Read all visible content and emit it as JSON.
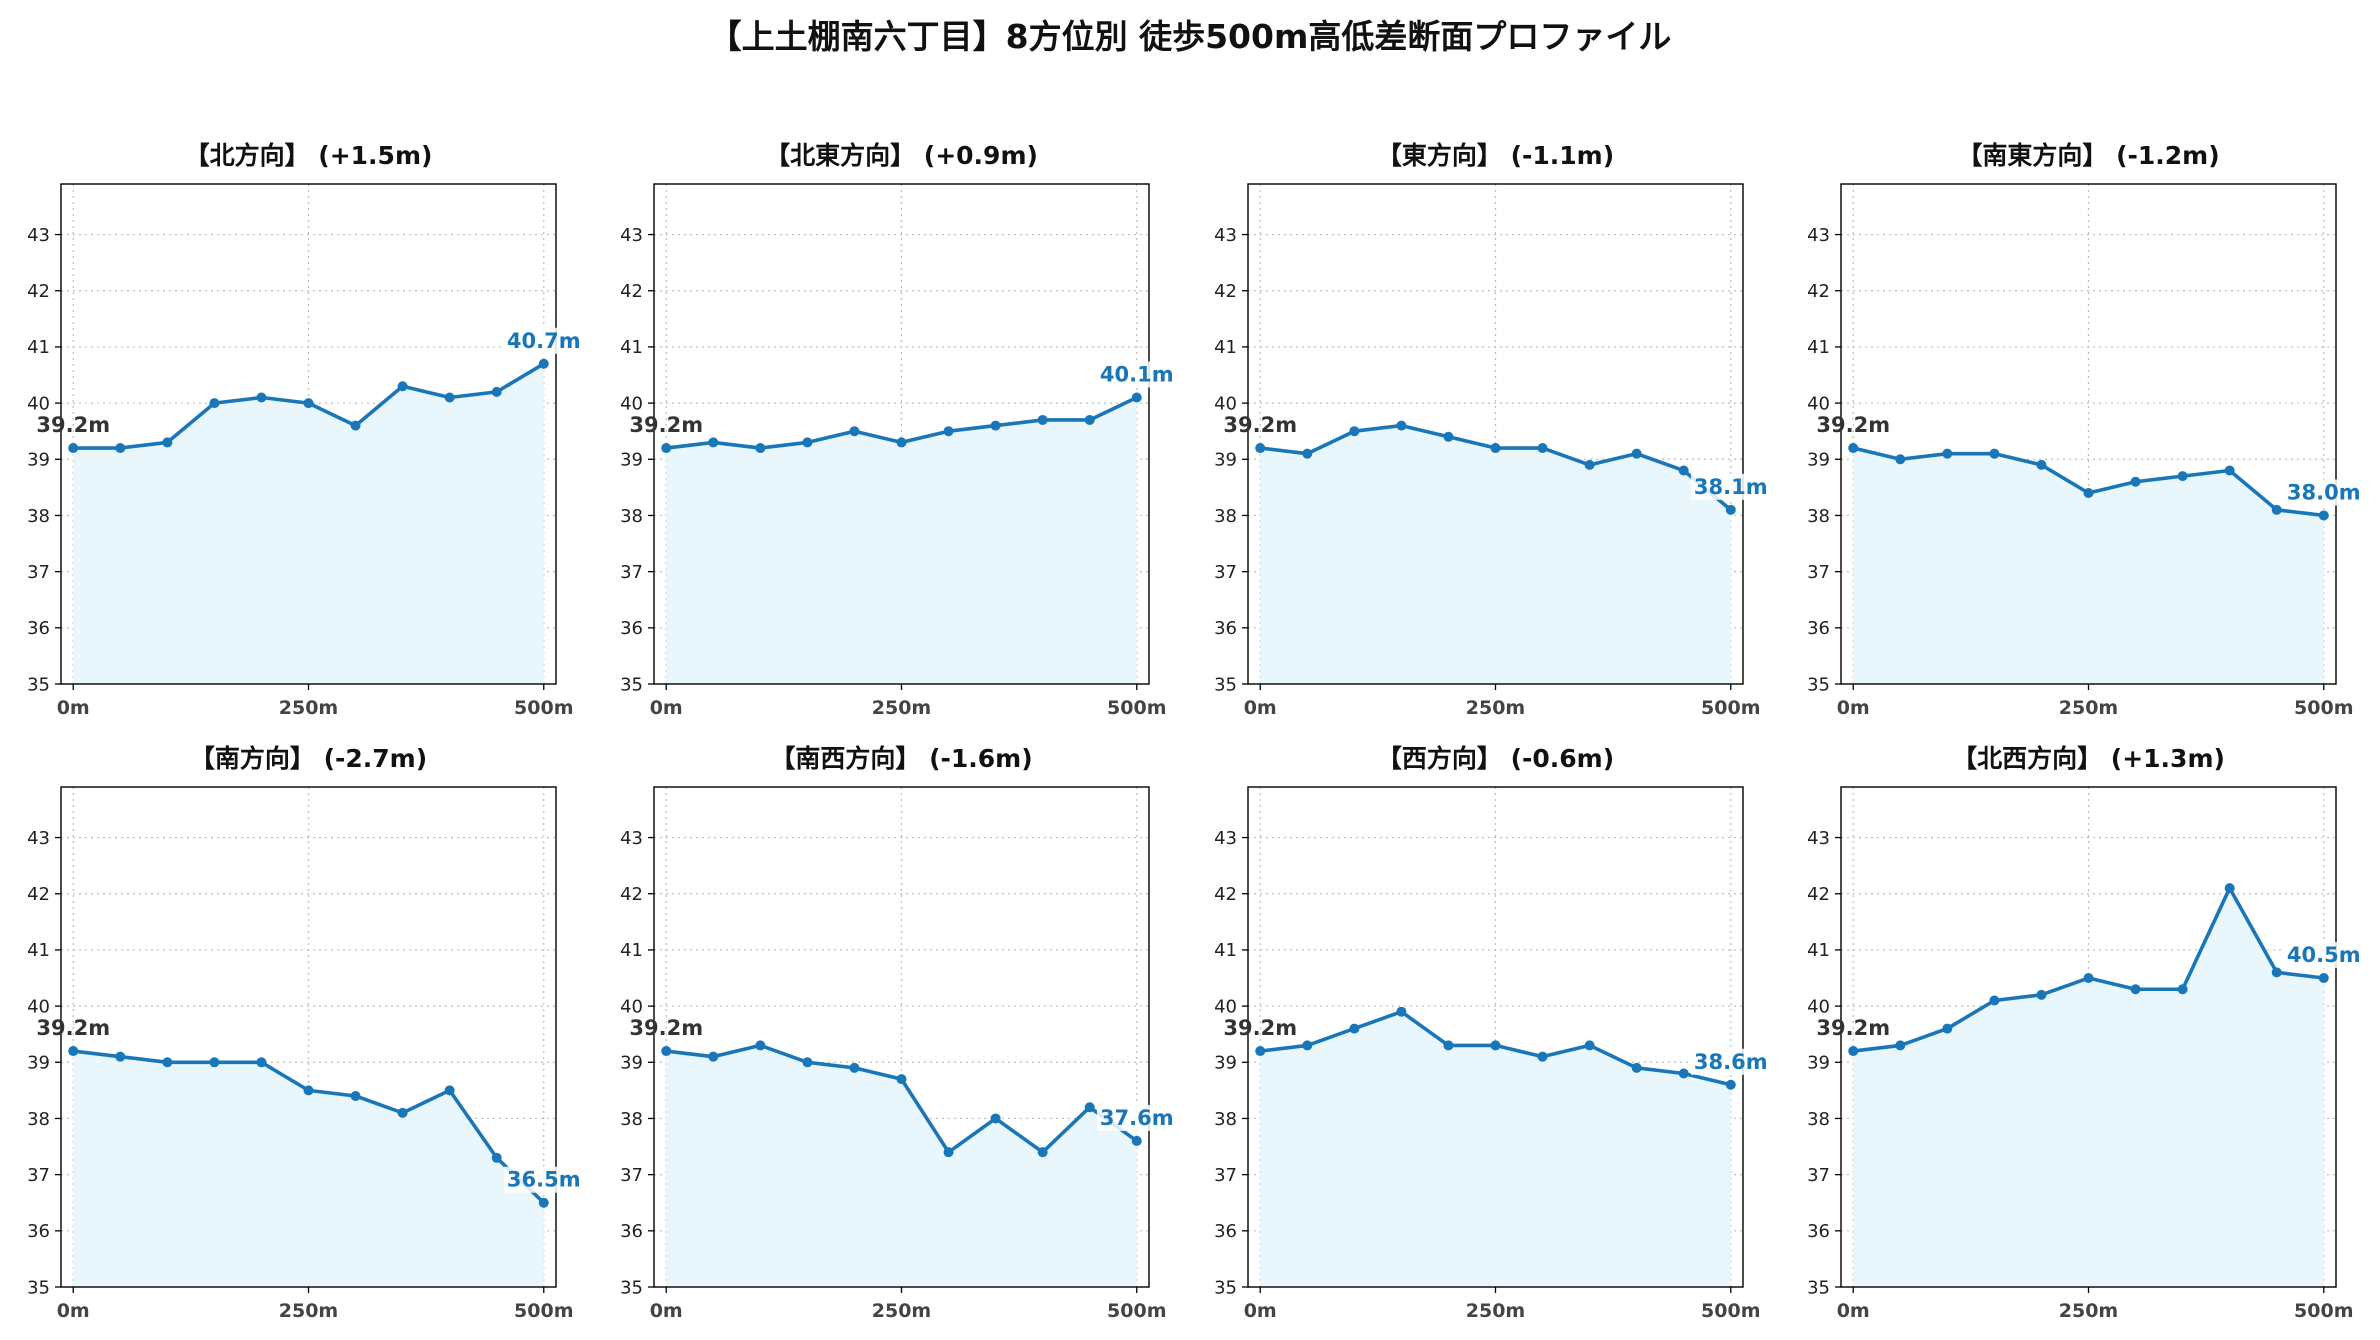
{
  "title": "【上土棚南六丁目】8方位別 徒歩500m高低差断面プロファイル",
  "colors": {
    "line": "#1976b8",
    "fill": "#e9f6fc",
    "start_label": "#333333",
    "end_label": "#1976b8",
    "grid": "#bdbdbd",
    "xtick_label": "#444444",
    "axes": "#000000"
  },
  "chart_data": [
    {
      "type": "line",
      "title": "【北方向】 (+1.5m)",
      "x": [
        0,
        50,
        100,
        150,
        200,
        250,
        300,
        350,
        400,
        450,
        500
      ],
      "values": [
        39.2,
        39.2,
        39.3,
        40.0,
        40.1,
        40.0,
        39.6,
        40.3,
        40.1,
        40.2,
        40.7
      ],
      "xlim": [
        -13,
        513
      ],
      "ylim": [
        35,
        43.9
      ],
      "xticks": [
        0,
        250,
        500
      ],
      "xticklabels": [
        "0m",
        "250m",
        "500m"
      ],
      "yticks": [
        35,
        36,
        37,
        38,
        39,
        40,
        41,
        42,
        43
      ],
      "grid": true,
      "fill_under": true,
      "start_label": "39.2m",
      "end_label": "40.7m"
    },
    {
      "type": "line",
      "title": "【北東方向】 (+0.9m)",
      "x": [
        0,
        50,
        100,
        150,
        200,
        250,
        300,
        350,
        400,
        450,
        500
      ],
      "values": [
        39.2,
        39.3,
        39.2,
        39.3,
        39.5,
        39.3,
        39.5,
        39.6,
        39.7,
        39.7,
        40.1
      ],
      "xlim": [
        -13,
        513
      ],
      "ylim": [
        35,
        43.9
      ],
      "xticks": [
        0,
        250,
        500
      ],
      "xticklabels": [
        "0m",
        "250m",
        "500m"
      ],
      "yticks": [
        35,
        36,
        37,
        38,
        39,
        40,
        41,
        42,
        43
      ],
      "grid": true,
      "fill_under": true,
      "start_label": "39.2m",
      "end_label": "40.1m"
    },
    {
      "type": "line",
      "title": "【東方向】 (-1.1m)",
      "x": [
        0,
        50,
        100,
        150,
        200,
        250,
        300,
        350,
        400,
        450,
        500
      ],
      "values": [
        39.2,
        39.1,
        39.5,
        39.6,
        39.4,
        39.2,
        39.2,
        38.9,
        39.1,
        38.8,
        38.1
      ],
      "xlim": [
        -13,
        513
      ],
      "ylim": [
        35,
        43.9
      ],
      "xticks": [
        0,
        250,
        500
      ],
      "xticklabels": [
        "0m",
        "250m",
        "500m"
      ],
      "yticks": [
        35,
        36,
        37,
        38,
        39,
        40,
        41,
        42,
        43
      ],
      "grid": true,
      "fill_under": true,
      "start_label": "39.2m",
      "end_label": "38.1m"
    },
    {
      "type": "line",
      "title": "【南東方向】 (-1.2m)",
      "x": [
        0,
        50,
        100,
        150,
        200,
        250,
        300,
        350,
        400,
        450,
        500
      ],
      "values": [
        39.2,
        39.0,
        39.1,
        39.1,
        38.9,
        38.4,
        38.6,
        38.7,
        38.8,
        38.1,
        38.0
      ],
      "xlim": [
        -13,
        513
      ],
      "ylim": [
        35,
        43.9
      ],
      "xticks": [
        0,
        250,
        500
      ],
      "xticklabels": [
        "0m",
        "250m",
        "500m"
      ],
      "yticks": [
        35,
        36,
        37,
        38,
        39,
        40,
        41,
        42,
        43
      ],
      "grid": true,
      "fill_under": true,
      "start_label": "39.2m",
      "end_label": "38.0m"
    },
    {
      "type": "line",
      "title": "【南方向】 (-2.7m)",
      "x": [
        0,
        50,
        100,
        150,
        200,
        250,
        300,
        350,
        400,
        450,
        500
      ],
      "values": [
        39.2,
        39.1,
        39.0,
        39.0,
        39.0,
        38.5,
        38.4,
        38.1,
        38.5,
        37.3,
        36.5
      ],
      "xlim": [
        -13,
        513
      ],
      "ylim": [
        35,
        43.9
      ],
      "xticks": [
        0,
        250,
        500
      ],
      "xticklabels": [
        "0m",
        "250m",
        "500m"
      ],
      "yticks": [
        35,
        36,
        37,
        38,
        39,
        40,
        41,
        42,
        43
      ],
      "grid": true,
      "fill_under": true,
      "start_label": "39.2m",
      "end_label": "36.5m"
    },
    {
      "type": "line",
      "title": "【南西方向】 (-1.6m)",
      "x": [
        0,
        50,
        100,
        150,
        200,
        250,
        300,
        350,
        400,
        450,
        500
      ],
      "values": [
        39.2,
        39.1,
        39.3,
        39.0,
        38.9,
        38.7,
        37.4,
        38.0,
        37.4,
        38.2,
        37.6
      ],
      "xlim": [
        -13,
        513
      ],
      "ylim": [
        35,
        43.9
      ],
      "xticks": [
        0,
        250,
        500
      ],
      "xticklabels": [
        "0m",
        "250m",
        "500m"
      ],
      "yticks": [
        35,
        36,
        37,
        38,
        39,
        40,
        41,
        42,
        43
      ],
      "grid": true,
      "fill_under": true,
      "start_label": "39.2m",
      "end_label": "37.6m"
    },
    {
      "type": "line",
      "title": "【西方向】 (-0.6m)",
      "x": [
        0,
        50,
        100,
        150,
        200,
        250,
        300,
        350,
        400,
        450,
        500
      ],
      "values": [
        39.2,
        39.3,
        39.6,
        39.9,
        39.3,
        39.3,
        39.1,
        39.3,
        38.9,
        38.8,
        38.6
      ],
      "xlim": [
        -13,
        513
      ],
      "ylim": [
        35,
        43.9
      ],
      "xticks": [
        0,
        250,
        500
      ],
      "xticklabels": [
        "0m",
        "250m",
        "500m"
      ],
      "yticks": [
        35,
        36,
        37,
        38,
        39,
        40,
        41,
        42,
        43
      ],
      "grid": true,
      "fill_under": true,
      "start_label": "39.2m",
      "end_label": "38.6m"
    },
    {
      "type": "line",
      "title": "【北西方向】 (+1.3m)",
      "x": [
        0,
        50,
        100,
        150,
        200,
        250,
        300,
        350,
        400,
        450,
        500
      ],
      "values": [
        39.2,
        39.3,
        39.6,
        40.1,
        40.2,
        40.5,
        40.3,
        40.3,
        42.1,
        40.6,
        40.5
      ],
      "xlim": [
        -13,
        513
      ],
      "ylim": [
        35,
        43.9
      ],
      "xticks": [
        0,
        250,
        500
      ],
      "xticklabels": [
        "0m",
        "250m",
        "500m"
      ],
      "yticks": [
        35,
        36,
        37,
        38,
        39,
        40,
        41,
        42,
        43
      ],
      "grid": true,
      "fill_under": true,
      "start_label": "39.2m",
      "end_label": "40.5m"
    }
  ]
}
